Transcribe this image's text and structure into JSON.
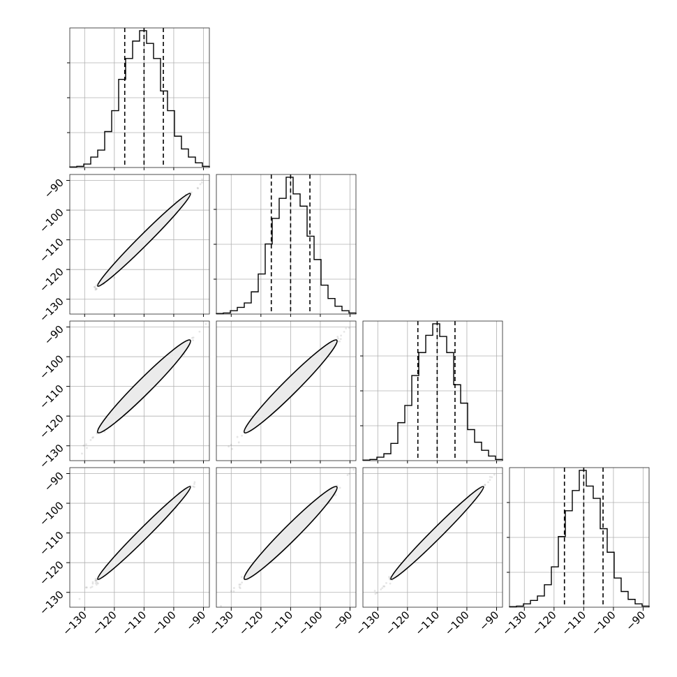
{
  "chart_data": {
    "type": "corner",
    "n_params": 4,
    "axis_range": [
      -135,
      -88
    ],
    "ticks": [
      -130,
      -120,
      -110,
      -100,
      -90
    ],
    "tick_labels": [
      "−130",
      "−120",
      "−110",
      "−100",
      "−90"
    ],
    "grid": true,
    "hist_bins": [
      -135,
      -132.65,
      -130.3,
      -127.95,
      -125.6,
      -123.25,
      -120.9,
      -118.55,
      -116.2,
      -113.85,
      -111.5,
      -109.15,
      -106.8,
      -104.45,
      -102.1,
      -99.75,
      -97.4,
      -95.05,
      -92.7,
      -90.35,
      -88
    ],
    "marginals": [
      {
        "param_index": 0,
        "counts": [
          0.5,
          1,
          3,
          9,
          15,
          31,
          49,
          76,
          94,
          109,
          118,
          107,
          94,
          66,
          49,
          27,
          16,
          9,
          4,
          1
        ],
        "quantiles": [
          -116.5,
          -110,
          -103.5
        ]
      },
      {
        "param_index": 1,
        "counts": [
          0.5,
          1,
          3,
          6,
          10,
          20,
          36,
          63,
          86,
          104,
          123,
          108,
          97,
          70,
          49,
          26,
          14,
          7,
          3,
          1
        ],
        "quantiles": [
          -116.5,
          -110,
          -103.5
        ]
      },
      {
        "param_index": 2,
        "counts": [
          0.5,
          1,
          3,
          6,
          15,
          33,
          48,
          74,
          94,
          109,
          119,
          108,
          94,
          66,
          50,
          27,
          16,
          9,
          4,
          1
        ],
        "quantiles": [
          -116.5,
          -110,
          -104
        ]
      },
      {
        "param_index": 3,
        "counts": [
          0.5,
          1,
          3,
          6,
          10,
          20,
          36,
          63,
          86,
          104,
          122,
          108,
          97,
          70,
          49,
          26,
          14,
          7,
          3,
          1
        ],
        "quantiles": [
          -116.5,
          -110,
          -103.5
        ]
      }
    ],
    "joint": [
      {
        "row": 1,
        "col": 0,
        "mean": [
          -110,
          -110
        ],
        "sigma": [
          6.5,
          6.5
        ],
        "rho": 0.995
      },
      {
        "row": 2,
        "col": 0,
        "mean": [
          -110,
          -110
        ],
        "sigma": [
          6.5,
          6.5
        ],
        "rho": 0.99
      },
      {
        "row": 2,
        "col": 1,
        "mean": [
          -110,
          -110
        ],
        "sigma": [
          6.5,
          6.5
        ],
        "rho": 0.99
      },
      {
        "row": 3,
        "col": 0,
        "mean": [
          -110,
          -110
        ],
        "sigma": [
          6.5,
          6.5
        ],
        "rho": 0.995
      },
      {
        "row": 3,
        "col": 1,
        "mean": [
          -110,
          -110
        ],
        "sigma": [
          6.5,
          6.5
        ],
        "rho": 0.99
      },
      {
        "row": 3,
        "col": 2,
        "mean": [
          -110,
          -110
        ],
        "sigma": [
          6.5,
          6.5
        ],
        "rho": 0.995
      }
    ],
    "contour_levels_sigma": [
      0.5,
      1.0,
      1.5
    ]
  }
}
